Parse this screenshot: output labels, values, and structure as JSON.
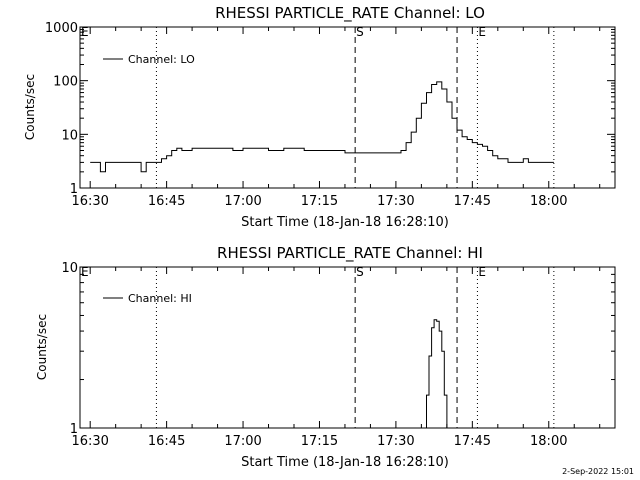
{
  "footer_date": "2-Sep-2022 15:01",
  "chart_data": [
    {
      "type": "line",
      "title": "RHESSI PARTICLE_RATE Channel: LO",
      "xlabel": "Start Time (18-Jan-18 16:28:10)",
      "ylabel": "Counts/sec",
      "y_scale": "log",
      "xlim": [
        "16:28",
        "18:13"
      ],
      "ylim": [
        1,
        1000
      ],
      "x_ticks": [
        "16:30",
        "16:45",
        "17:00",
        "17:15",
        "17:30",
        "17:45",
        "18:00"
      ],
      "y_ticks": [
        "1",
        "10",
        "100",
        "1000"
      ],
      "legend": {
        "entries": [
          "Channel: LO"
        ],
        "placement": "top-left"
      },
      "markers": [
        {
          "label": "E",
          "time": "16:28",
          "style": "dotted"
        },
        {
          "label": "",
          "time": "16:43",
          "style": "dotted"
        },
        {
          "label": "S",
          "time": "17:22",
          "style": "dashed"
        },
        {
          "label": "",
          "time": "17:42",
          "style": "dashed"
        },
        {
          "label": "E",
          "time": "17:46",
          "style": "dotted"
        },
        {
          "label": "",
          "time": "18:01",
          "style": "dotted"
        }
      ],
      "series": [
        {
          "name": "Channel: LO",
          "x": [
            "16:30",
            "16:32",
            "16:33",
            "16:35",
            "16:36",
            "16:37",
            "16:38",
            "16:40",
            "16:40",
            "16:41",
            "16:42",
            "16:43",
            "16:44",
            "16:45",
            "16:46",
            "16:47",
            "16:48",
            "16:50",
            "16:52",
            "16:55",
            "16:58",
            "17:00",
            "17:03",
            "17:05",
            "17:08",
            "17:10",
            "17:12",
            "17:14",
            "17:16",
            "17:18",
            "17:20",
            "17:22",
            "17:24",
            "17:26",
            "17:28",
            "17:30",
            "17:31",
            "17:32",
            "17:33",
            "17:34",
            "17:35",
            "17:36",
            "17:37",
            "17:38",
            "17:39",
            "17:40",
            "17:41",
            "17:42",
            "17:43",
            "17:44",
            "17:45",
            "17:46",
            "17:47",
            "17:48",
            "17:49",
            "17:50",
            "17:52",
            "17:54",
            "17:55",
            "17:56",
            "17:58",
            "18:00",
            "18:01"
          ],
          "values": [
            3,
            2,
            3,
            3,
            3,
            3,
            3,
            3,
            2,
            3,
            3,
            3,
            3.5,
            4,
            5,
            5.5,
            5,
            5.5,
            5.5,
            5.5,
            5,
            5.5,
            5.5,
            5,
            5.5,
            5.5,
            5,
            5,
            5,
            5,
            4.5,
            4.5,
            4.5,
            4.5,
            4.5,
            4.5,
            5,
            7,
            11,
            20,
            38,
            60,
            85,
            95,
            70,
            40,
            20,
            12,
            9,
            8,
            7,
            6.5,
            6,
            5,
            4,
            3.5,
            3,
            3,
            3.5,
            3,
            3,
            3,
            3
          ]
        }
      ]
    },
    {
      "type": "line",
      "title": "RHESSI PARTICLE_RATE Channel: HI",
      "xlabel": "Start Time (18-Jan-18 16:28:10)",
      "ylabel": "Counts/sec",
      "y_scale": "log",
      "xlim": [
        "16:28",
        "18:13"
      ],
      "ylim": [
        1,
        10
      ],
      "x_ticks": [
        "16:30",
        "16:45",
        "17:00",
        "17:15",
        "17:30",
        "17:45",
        "18:00"
      ],
      "y_ticks": [
        "1",
        "10"
      ],
      "legend": {
        "entries": [
          "Channel: HI"
        ],
        "placement": "top-left"
      },
      "markers": [
        {
          "label": "E",
          "time": "16:28",
          "style": "dotted"
        },
        {
          "label": "",
          "time": "16:43",
          "style": "dotted"
        },
        {
          "label": "S",
          "time": "17:22",
          "style": "dashed"
        },
        {
          "label": "",
          "time": "17:42",
          "style": "dashed"
        },
        {
          "label": "E",
          "time": "17:46",
          "style": "dotted"
        },
        {
          "label": "",
          "time": "18:01",
          "style": "dotted"
        }
      ],
      "series": [
        {
          "name": "Channel: HI",
          "x": [
            "17:35.5",
            "17:36",
            "17:36.5",
            "17:37",
            "17:37.5",
            "17:38",
            "17:38.5",
            "17:39",
            "17:39.5",
            "17:40"
          ],
          "values": [
            1,
            1.6,
            2.8,
            4.2,
            4.7,
            4.6,
            4.0,
            3.0,
            1.6,
            1
          ]
        }
      ]
    }
  ]
}
